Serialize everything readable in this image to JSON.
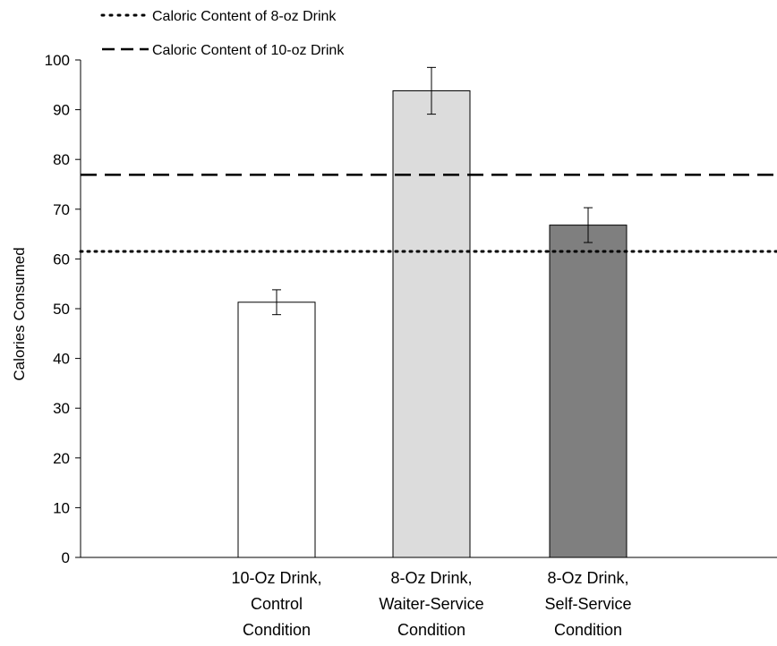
{
  "chart_data": {
    "type": "bar",
    "title": "",
    "xlabel": "",
    "ylabel": "Calories Consumed",
    "ylim": [
      0,
      100
    ],
    "ytick_step": 10,
    "grid": false,
    "legend_position": "top-left",
    "categories": [
      [
        "10-Oz Drink,",
        "Control",
        "Condition"
      ],
      [
        "8-Oz Drink,",
        "Waiter-Service",
        "Condition"
      ],
      [
        "8-Oz Drink,",
        "Self-Service",
        "Condition"
      ]
    ],
    "values": [
      51.3,
      93.8,
      66.8
    ],
    "error": [
      2.5,
      4.7,
      3.5
    ],
    "bar_colors": [
      "#ffffff",
      "#dcdcdc",
      "#7f7f7f"
    ],
    "reference_lines": [
      {
        "name": "Caloric Content of 8-oz Drink",
        "value": 61.5,
        "style": "dotted"
      },
      {
        "name": "Caloric Content of 10-oz Drink",
        "value": 76.9,
        "style": "dashed"
      }
    ]
  }
}
